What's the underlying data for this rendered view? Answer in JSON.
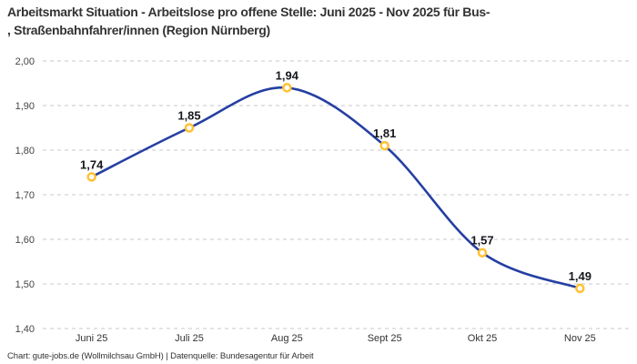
{
  "header": {
    "title_line1": "Arbeitsmarkt Situation - Arbeitslose pro offene Stelle: Juni 2025 - Nov 2025 für Bus-",
    "title_line2": ", Straßenbahnfahrer/innen (Region Nürnberg)"
  },
  "chart_data": {
    "type": "line",
    "title": "Arbeitsmarkt Situation - Arbeitslose pro offene Stelle: Juni 2025 - Nov 2025 für Bus-, Straßenbahnfahrer/innen (Region Nürnberg)",
    "categories": [
      "Juni 25",
      "Juli 25",
      "Aug 25",
      "Sept 25",
      "Okt 25",
      "Nov 25"
    ],
    "values": [
      1.74,
      1.85,
      1.94,
      1.81,
      1.57,
      1.49
    ],
    "value_labels": [
      "1,74",
      "1,85",
      "1,94",
      "1,81",
      "1,57",
      "1,49"
    ],
    "y_ticks": [
      {
        "value": 2.0,
        "label": "2,00"
      },
      {
        "value": 1.9,
        "label": "1,90"
      },
      {
        "value": 1.8,
        "label": "1,80"
      },
      {
        "value": 1.7,
        "label": "1,70"
      },
      {
        "value": 1.6,
        "label": "1,60"
      },
      {
        "value": 1.5,
        "label": "1,50"
      },
      {
        "value": 1.4,
        "label": "1,40"
      }
    ],
    "ylim": [
      1.4,
      2.0
    ],
    "xlabel": "",
    "ylabel": "",
    "grid": true,
    "smooth": true,
    "legend": "none",
    "line_color": "#253fa2",
    "marker_color": "#ffc233",
    "label_color": "#16181d",
    "grid_color": "#c9c9c9"
  },
  "footer": {
    "text": "Chart: gute-jobs.de (Wollmilchsau GmbH) | Datenquelle: Bundesagentur für Arbeit"
  }
}
